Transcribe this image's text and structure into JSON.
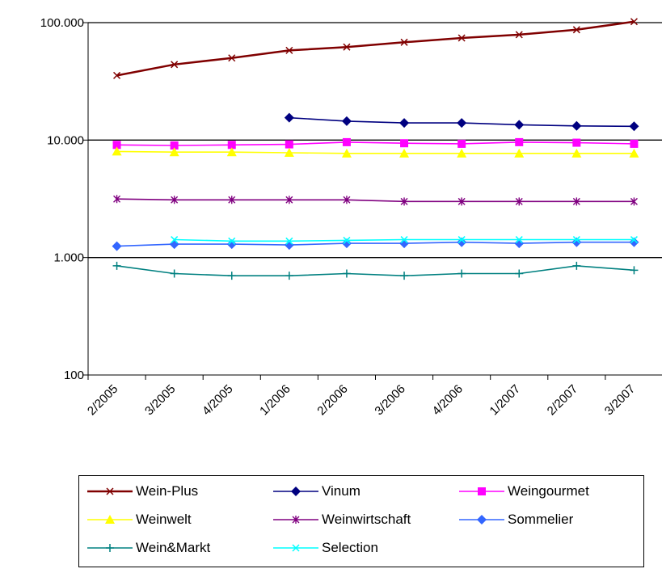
{
  "chart_data": {
    "type": "line",
    "y_scale": "log",
    "ylim": [
      100,
      100000
    ],
    "y_ticks": [
      {
        "value": 100,
        "label": "100"
      },
      {
        "value": 1000,
        "label": "1.000"
      },
      {
        "value": 10000,
        "label": "10.000"
      },
      {
        "value": 100000,
        "label": "100.000"
      }
    ],
    "categories": [
      "2/2005",
      "3/2005",
      "4/2005",
      "1/2006",
      "2/2006",
      "3/2006",
      "4/2006",
      "1/2007",
      "2/2007",
      "3/2007"
    ],
    "legend_position": "bottom",
    "series": [
      {
        "name": "Wein-Plus",
        "color": "#800000",
        "marker": "x",
        "values": [
          35500,
          44000,
          50000,
          58000,
          62000,
          68000,
          74000,
          79000,
          87000,
          102000
        ]
      },
      {
        "name": "Vinum",
        "color": "#000080",
        "marker": "diamond",
        "values": [
          null,
          null,
          null,
          15500,
          14500,
          14000,
          14000,
          13500,
          13200,
          13100
        ]
      },
      {
        "name": "Weingourmet",
        "color": "#ff00ff",
        "marker": "square",
        "values": [
          9100,
          9000,
          9100,
          9200,
          9600,
          9400,
          9300,
          9600,
          9500,
          9300
        ]
      },
      {
        "name": "Weinwelt",
        "color": "#ffff00",
        "marker": "triangle",
        "values": [
          8000,
          7900,
          7900,
          7800,
          7700,
          7700,
          7700,
          7700,
          7700,
          7700
        ]
      },
      {
        "name": "Weinwirtschaft",
        "color": "#800080",
        "marker": "asterisk",
        "values": [
          3150,
          3100,
          3100,
          3100,
          3100,
          3000,
          3000,
          3000,
          3000,
          3000
        ]
      },
      {
        "name": "Sommelier",
        "color": "#3366ff",
        "marker": "diamond",
        "values": [
          1250,
          1300,
          1300,
          1280,
          1320,
          1320,
          1350,
          1320,
          1350,
          1350
        ]
      },
      {
        "name": "Wein&Markt",
        "color": "#008080",
        "marker": "plus",
        "values": [
          850,
          730,
          700,
          700,
          730,
          700,
          730,
          730,
          850,
          780
        ]
      },
      {
        "name": "Selection",
        "color": "#00ffff",
        "marker": "x",
        "values": [
          null,
          1420,
          1380,
          1380,
          1400,
          1420,
          1420,
          1420,
          1420,
          1420
        ]
      }
    ]
  }
}
